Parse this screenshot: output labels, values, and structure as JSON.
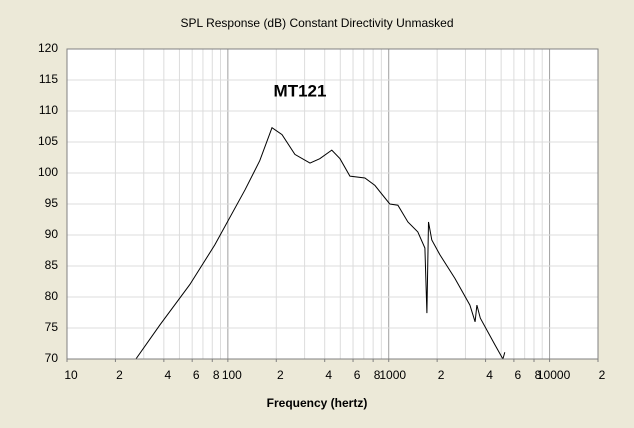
{
  "chart_data": {
    "type": "line",
    "title": "SPL Response (dB)   Constant Directivity   Unmasked",
    "x_label": "Frequency (hertz)",
    "annotation": "MT121",
    "log_x": true,
    "grid": true,
    "xlim": [
      10,
      20000
    ],
    "ylim": [
      70,
      120
    ],
    "xticks": [
      10,
      {
        "value": 20,
        "label": "2"
      },
      {
        "value": 40,
        "label": "4"
      },
      {
        "value": 60,
        "label": "6"
      },
      {
        "value": 80,
        "label": "8"
      },
      100,
      {
        "value": 200,
        "label": "2"
      },
      {
        "value": 400,
        "label": "4"
      },
      {
        "value": 600,
        "label": "6"
      },
      {
        "value": 800,
        "label": "8"
      },
      1000,
      {
        "value": 2000,
        "label": "2"
      },
      {
        "value": 4000,
        "label": "4"
      },
      {
        "value": 6000,
        "label": "6"
      },
      {
        "value": 8000,
        "label": "8"
      },
      10000,
      {
        "value": 20000,
        "label": "2"
      }
    ],
    "yticks": [
      70,
      75,
      80,
      85,
      90,
      95,
      100,
      105,
      110,
      115,
      120
    ],
    "series": [
      {
        "name": "MT121",
        "color": "#000000",
        "x": [
          26.8,
          37.8,
          58,
          83,
          128,
          158,
          188,
          217,
          261,
          324,
          373,
          443,
          498,
          574,
          711,
          821,
          1016,
          1140,
          1316,
          1517,
          1678,
          1727,
          1768,
          1853,
          2080,
          2578,
          3197,
          3446,
          3532,
          3710,
          4570,
          5130,
          5270
        ],
        "values": [
          70,
          75.5,
          82,
          88.4,
          97.3,
          102,
          107.3,
          106.2,
          103,
          101.6,
          102.3,
          103.7,
          102.3,
          99.5,
          99.2,
          98,
          95,
          94.8,
          92.1,
          90.5,
          87.9,
          77.4,
          92.1,
          89.2,
          86.8,
          83,
          78.7,
          76,
          78.7,
          76.6,
          72.3,
          70,
          71.1
        ]
      }
    ]
  }
}
